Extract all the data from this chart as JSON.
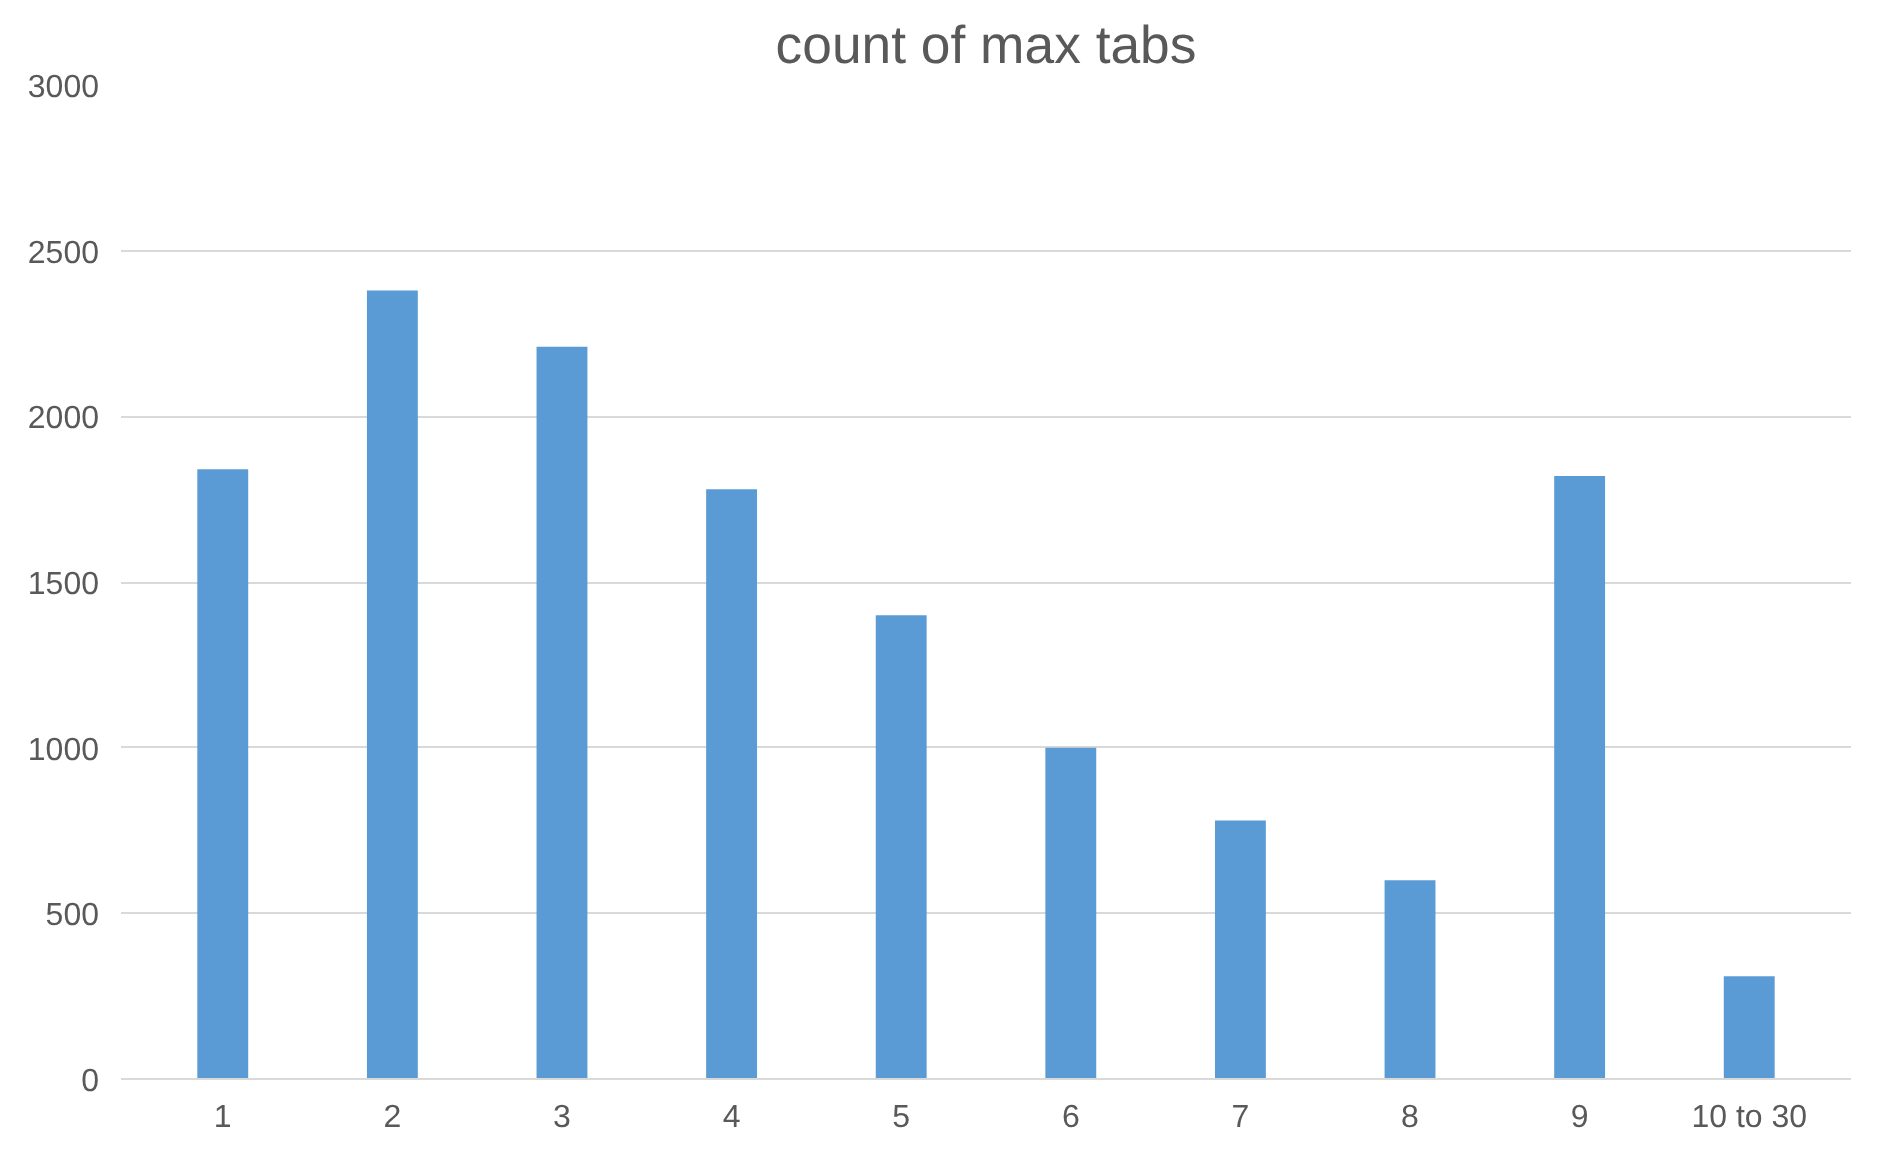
{
  "chart_data": {
    "type": "bar",
    "title": "count of max tabs",
    "categories": [
      "1",
      "2",
      "3",
      "4",
      "5",
      "6",
      "7",
      "8",
      "9",
      "10 to 30"
    ],
    "values": [
      1840,
      2380,
      2210,
      1780,
      1400,
      1000,
      780,
      600,
      1820,
      310
    ],
    "color": "#5b9bd5",
    "ylim": [
      0,
      3000
    ],
    "yticks": [
      0,
      500,
      1000,
      1500,
      2000,
      2500,
      3000
    ],
    "grid": "y"
  }
}
